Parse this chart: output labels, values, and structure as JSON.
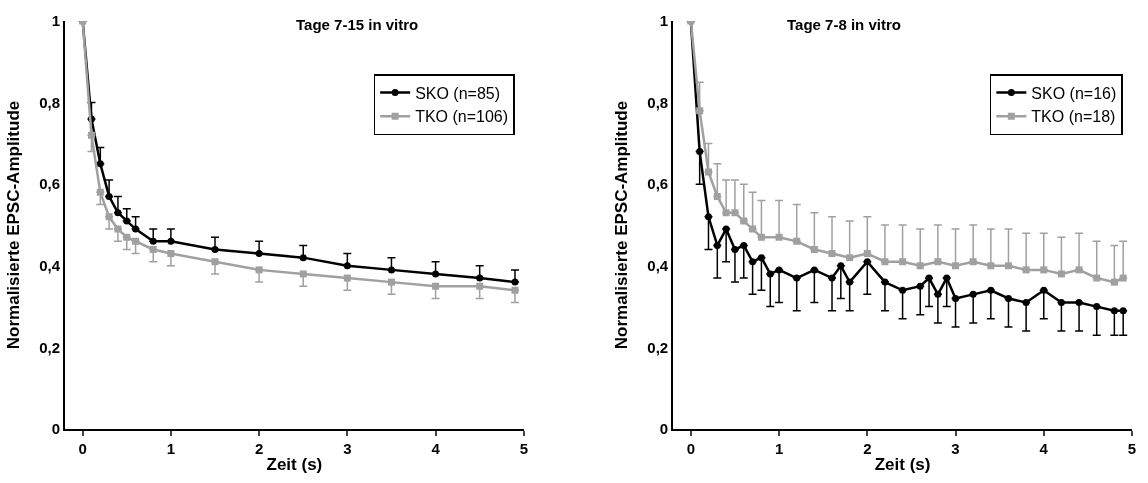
{
  "chart_data": [
    {
      "type": "line",
      "title": "Tage 7-15 in vitro",
      "xlabel": "Zeit (s)",
      "ylabel": "Normalisierte EPSC-Amplitude",
      "xlim": [
        -0.2,
        5
      ],
      "ylim": [
        0,
        1
      ],
      "xticks": [
        0,
        1,
        2,
        3,
        4,
        5
      ],
      "yticks": [
        0,
        {
          "value": 0.2,
          "label": "0,2"
        },
        {
          "value": 0.4,
          "label": "0,4"
        },
        {
          "value": 0.6,
          "label": "0,6"
        },
        {
          "value": 0.8,
          "label": "0,8"
        },
        1
      ],
      "legend": "top right",
      "line_style": "solid",
      "series": [
        {
          "name": "SKO (n=85)",
          "color": "#000000",
          "marker": "circle",
          "x": [
            0,
            0.1,
            0.2,
            0.3,
            0.4,
            0.5,
            0.6,
            0.8,
            1.0,
            1.5,
            2.0,
            2.5,
            3.0,
            3.5,
            4.0,
            4.5,
            4.9
          ],
          "values": [
            1.0,
            0.76,
            0.65,
            0.57,
            0.53,
            0.51,
            0.49,
            0.46,
            0.46,
            0.44,
            0.43,
            0.42,
            0.4,
            0.39,
            0.38,
            0.37,
            0.36
          ],
          "errors": [
            null,
            [
              0.76,
              0.8
            ],
            [
              0.65,
              0.69
            ],
            [
              0.57,
              0.61
            ],
            [
              0.53,
              0.57
            ],
            [
              0.51,
              0.54
            ],
            [
              0.49,
              0.52
            ],
            [
              0.46,
              0.49
            ],
            [
              0.46,
              0.49
            ],
            [
              0.44,
              0.47
            ],
            [
              0.43,
              0.46
            ],
            [
              0.42,
              0.45
            ],
            [
              0.4,
              0.43
            ],
            [
              0.39,
              0.42
            ],
            [
              0.38,
              0.41
            ],
            [
              0.37,
              0.4
            ],
            [
              0.36,
              0.39
            ]
          ]
        },
        {
          "name": "TKO (n=106)",
          "color": "#a0a0a0",
          "marker": "square",
          "x": [
            0,
            0.1,
            0.2,
            0.3,
            0.4,
            0.5,
            0.6,
            0.8,
            1.0,
            1.5,
            2.0,
            2.5,
            3.0,
            3.5,
            4.0,
            4.5,
            4.9
          ],
          "values": [
            1.0,
            0.72,
            0.58,
            0.52,
            0.49,
            0.47,
            0.46,
            0.44,
            0.43,
            0.41,
            0.39,
            0.38,
            0.37,
            0.36,
            0.35,
            0.35,
            0.34
          ],
          "errors": [
            null,
            [
              0.68,
              0.72
            ],
            [
              0.55,
              0.58
            ],
            [
              0.49,
              0.52
            ],
            [
              0.46,
              0.49
            ],
            [
              0.44,
              0.47
            ],
            [
              0.43,
              0.46
            ],
            [
              0.41,
              0.44
            ],
            [
              0.4,
              0.43
            ],
            [
              0.38,
              0.41
            ],
            [
              0.36,
              0.39
            ],
            [
              0.35,
              0.38
            ],
            [
              0.34,
              0.37
            ],
            [
              0.33,
              0.36
            ],
            [
              0.32,
              0.35
            ],
            [
              0.32,
              0.35
            ],
            [
              0.31,
              0.34
            ]
          ]
        }
      ]
    },
    {
      "type": "line",
      "title": "Tage 7-8 in vitro",
      "xlabel": "Zeit (s)",
      "ylabel": "Normalisierte EPSC-Amplitude",
      "xlim": [
        -0.2,
        5
      ],
      "ylim": [
        0,
        1
      ],
      "xticks": [
        0,
        1,
        2,
        3,
        4,
        5
      ],
      "yticks": [
        0,
        {
          "value": 0.2,
          "label": "0,2"
        },
        {
          "value": 0.4,
          "label": "0,4"
        },
        {
          "value": 0.6,
          "label": "0,6"
        },
        {
          "value": 0.8,
          "label": "0,8"
        },
        1
      ],
      "legend": "top right",
      "line_style": "solid",
      "series": [
        {
          "name": "SKO (n=16)",
          "color": "#000000",
          "marker": "circle",
          "x": [
            0,
            0.1,
            0.2,
            0.3,
            0.4,
            0.5,
            0.6,
            0.7,
            0.8,
            0.9,
            1.0,
            1.2,
            1.4,
            1.6,
            1.7,
            1.8,
            2.0,
            2.2,
            2.4,
            2.6,
            2.7,
            2.8,
            2.9,
            3.0,
            3.2,
            3.4,
            3.6,
            3.8,
            4.0,
            4.2,
            4.4,
            4.6,
            4.8,
            4.9
          ],
          "values": [
            1.0,
            0.68,
            0.52,
            0.45,
            0.49,
            0.44,
            0.45,
            0.41,
            0.42,
            0.38,
            0.39,
            0.37,
            0.39,
            0.37,
            0.4,
            0.36,
            0.41,
            0.36,
            0.34,
            0.35,
            0.37,
            0.33,
            0.37,
            0.32,
            0.33,
            0.34,
            0.32,
            0.31,
            0.34,
            0.31,
            0.31,
            0.3,
            0.29,
            0.29
          ],
          "errors": [
            null,
            [
              0.6,
              0.68
            ],
            [
              0.44,
              0.52
            ],
            [
              0.37,
              0.45
            ],
            [
              0.41,
              0.49
            ],
            [
              0.36,
              0.44
            ],
            [
              0.37,
              0.45
            ],
            [
              0.33,
              0.41
            ],
            [
              0.34,
              0.42
            ],
            [
              0.3,
              0.38
            ],
            [
              0.31,
              0.39
            ],
            [
              0.29,
              0.37
            ],
            [
              0.31,
              0.39
            ],
            [
              0.29,
              0.37
            ],
            [
              0.32,
              0.4
            ],
            [
              0.29,
              0.36
            ],
            [
              0.33,
              0.41
            ],
            [
              0.29,
              0.36
            ],
            [
              0.27,
              0.34
            ],
            [
              0.28,
              0.35
            ],
            [
              0.3,
              0.37
            ],
            [
              0.26,
              0.33
            ],
            [
              0.3,
              0.37
            ],
            [
              0.25,
              0.32
            ],
            [
              0.26,
              0.33
            ],
            [
              0.27,
              0.34
            ],
            [
              0.25,
              0.32
            ],
            [
              0.24,
              0.31
            ],
            [
              0.27,
              0.34
            ],
            [
              0.24,
              0.31
            ],
            [
              0.24,
              0.31
            ],
            [
              0.23,
              0.3
            ],
            [
              0.23,
              0.29
            ],
            [
              0.23,
              0.29
            ]
          ]
        },
        {
          "name": "TKO (n=18)",
          "color": "#a0a0a0",
          "marker": "square",
          "x": [
            0,
            0.1,
            0.2,
            0.3,
            0.4,
            0.5,
            0.6,
            0.7,
            0.8,
            1.0,
            1.2,
            1.4,
            1.6,
            1.8,
            2.0,
            2.2,
            2.4,
            2.6,
            2.8,
            3.0,
            3.2,
            3.4,
            3.6,
            3.8,
            4.0,
            4.2,
            4.4,
            4.6,
            4.8,
            4.9
          ],
          "values": [
            1.0,
            0.78,
            0.63,
            0.57,
            0.53,
            0.53,
            0.51,
            0.49,
            0.47,
            0.47,
            0.46,
            0.44,
            0.43,
            0.42,
            0.43,
            0.41,
            0.41,
            0.4,
            0.41,
            0.4,
            0.41,
            0.4,
            0.4,
            0.39,
            0.39,
            0.38,
            0.39,
            0.37,
            0.36,
            0.37
          ],
          "errors": [
            null,
            [
              0.78,
              0.85
            ],
            [
              0.63,
              0.7
            ],
            [
              0.57,
              0.65
            ],
            [
              0.53,
              0.61
            ],
            [
              0.53,
              0.61
            ],
            [
              0.51,
              0.6
            ],
            [
              0.49,
              0.58
            ],
            [
              0.47,
              0.56
            ],
            [
              0.47,
              0.56
            ],
            [
              0.46,
              0.55
            ],
            [
              0.44,
              0.53
            ],
            [
              0.43,
              0.52
            ],
            [
              0.42,
              0.51
            ],
            [
              0.43,
              0.52
            ],
            [
              0.41,
              0.5
            ],
            [
              0.41,
              0.5
            ],
            [
              0.4,
              0.49
            ],
            [
              0.41,
              0.5
            ],
            [
              0.4,
              0.49
            ],
            [
              0.41,
              0.5
            ],
            [
              0.4,
              0.49
            ],
            [
              0.4,
              0.49
            ],
            [
              0.39,
              0.48
            ],
            [
              0.39,
              0.48
            ],
            [
              0.38,
              0.47
            ],
            [
              0.39,
              0.48
            ],
            [
              0.37,
              0.46
            ],
            [
              0.36,
              0.45
            ],
            [
              0.37,
              0.46
            ]
          ]
        }
      ]
    }
  ]
}
